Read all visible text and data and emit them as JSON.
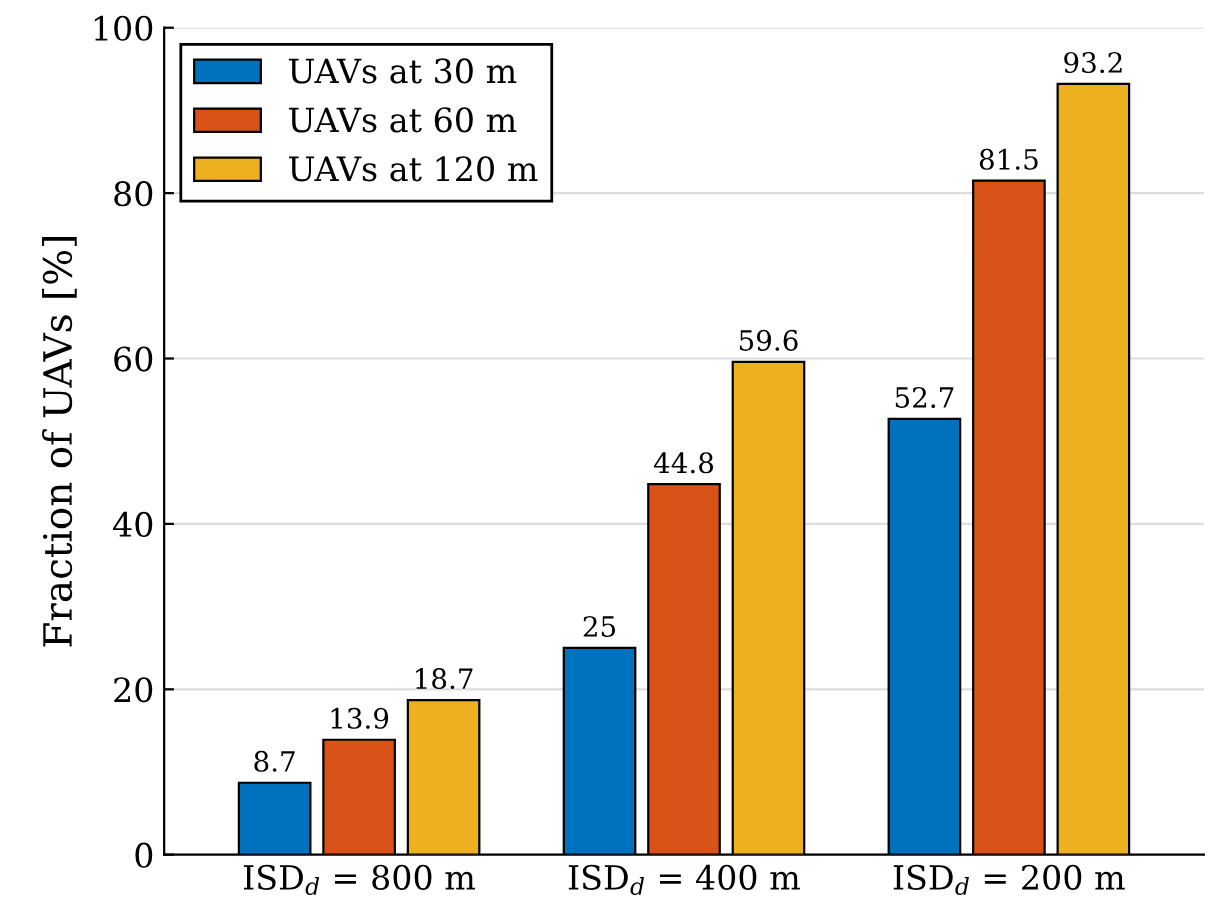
{
  "chart_data": {
    "type": "bar",
    "ylabel": "Fraction of UAVs [%]",
    "categories": [
      "ISD$_{d}$ = 800 m",
      "ISD$_{d}$ = 400 m",
      "ISD$_{d}$ = 200 m"
    ],
    "series": [
      {
        "name": "UAVs at 30 m",
        "color": "#0072bd",
        "values": [
          8.7,
          25,
          52.7
        ]
      },
      {
        "name": "UAVs at 60 m",
        "color": "#d95319",
        "values": [
          13.9,
          44.8,
          81.5
        ]
      },
      {
        "name": "UAVs at 120 m",
        "color": "#edb120",
        "values": [
          18.7,
          59.6,
          93.2
        ]
      }
    ],
    "ylim": [
      0,
      100
    ],
    "yticks": [
      0,
      20,
      40,
      60,
      80,
      100
    ],
    "grid": "y",
    "legend": "top left",
    "data_labels": true
  }
}
